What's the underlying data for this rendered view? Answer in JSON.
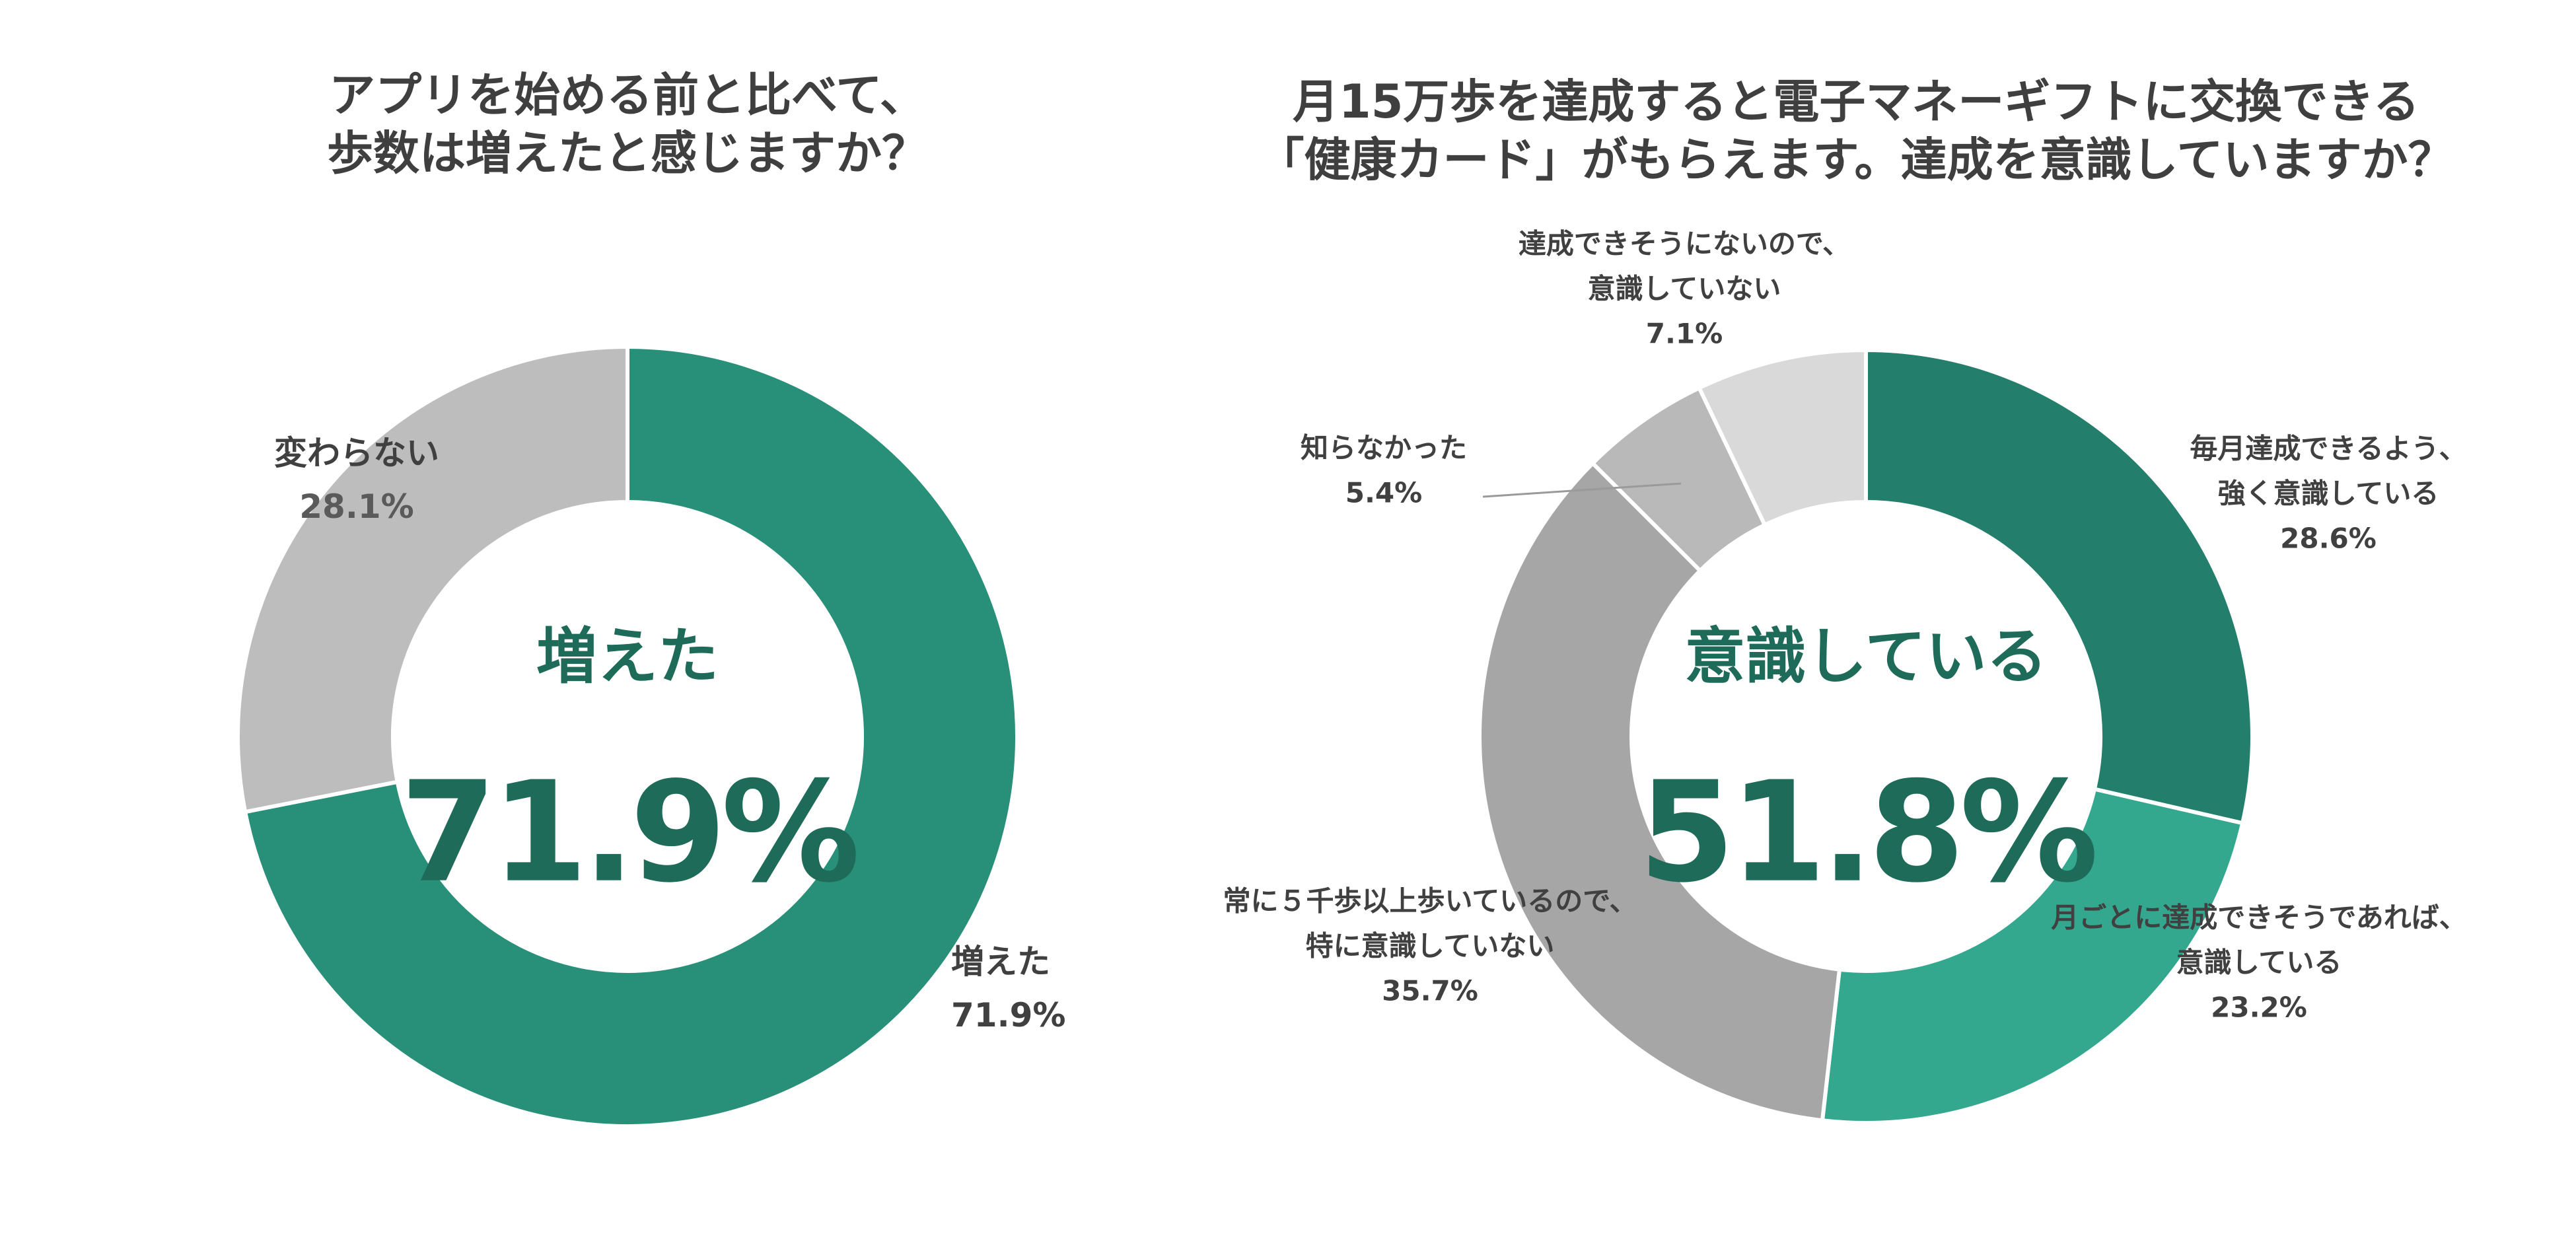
{
  "colors": {
    "dark_green": "#288f78",
    "mid_green": "#33a88f",
    "deep_green": "#237e6b",
    "center_text": "#1f6b59",
    "gray": "#bdbdbd",
    "gray_dark": "#a6a6a6",
    "gray_mid": "#b9b9b9",
    "gray_light": "#d9d9d9",
    "label": "#404040"
  },
  "chart_data": [
    {
      "type": "pie",
      "donut": true,
      "title": [
        "アプリを始める前と比べて、",
        "歩数は増えたと感じますか？"
      ],
      "center_label": "増えた",
      "center_value": "71.9%",
      "slices": [
        {
          "label": [
            "増えた"
          ],
          "value": 71.9,
          "display": "71.9%",
          "color": "#288f78"
        },
        {
          "label": [
            "変わらない"
          ],
          "value": 28.1,
          "display": "28.1%",
          "color": "#bdbdbd"
        }
      ]
    },
    {
      "type": "pie",
      "donut": true,
      "title": [
        "月15万歩を達成すると電子マネーギフトに交換できる",
        "「健康カード」がもらえます。達成を意識していますか？"
      ],
      "center_label": "意識している",
      "center_value": "51.8%",
      "slices": [
        {
          "label": [
            "毎月達成できるよう、",
            "強く意識している"
          ],
          "value": 28.6,
          "display": "28.6%",
          "color": "#237e6b"
        },
        {
          "label": [
            "月ごとに達成できそうであれば、",
            "意識している"
          ],
          "value": 23.2,
          "display": "23.2%",
          "color": "#33a88f"
        },
        {
          "label": [
            "常に５千歩以上歩いているので、",
            "特に意識していない"
          ],
          "value": 35.7,
          "display": "35.7%",
          "color": "#a6a6a6"
        },
        {
          "label": [
            "知らなかった"
          ],
          "value": 5.4,
          "display": "5.4%",
          "color": "#b9b9b9"
        },
        {
          "label": [
            "達成できそうにないので、",
            "意識していない"
          ],
          "value": 7.1,
          "display": "7.1%",
          "color": "#d9d9d9"
        }
      ]
    }
  ]
}
